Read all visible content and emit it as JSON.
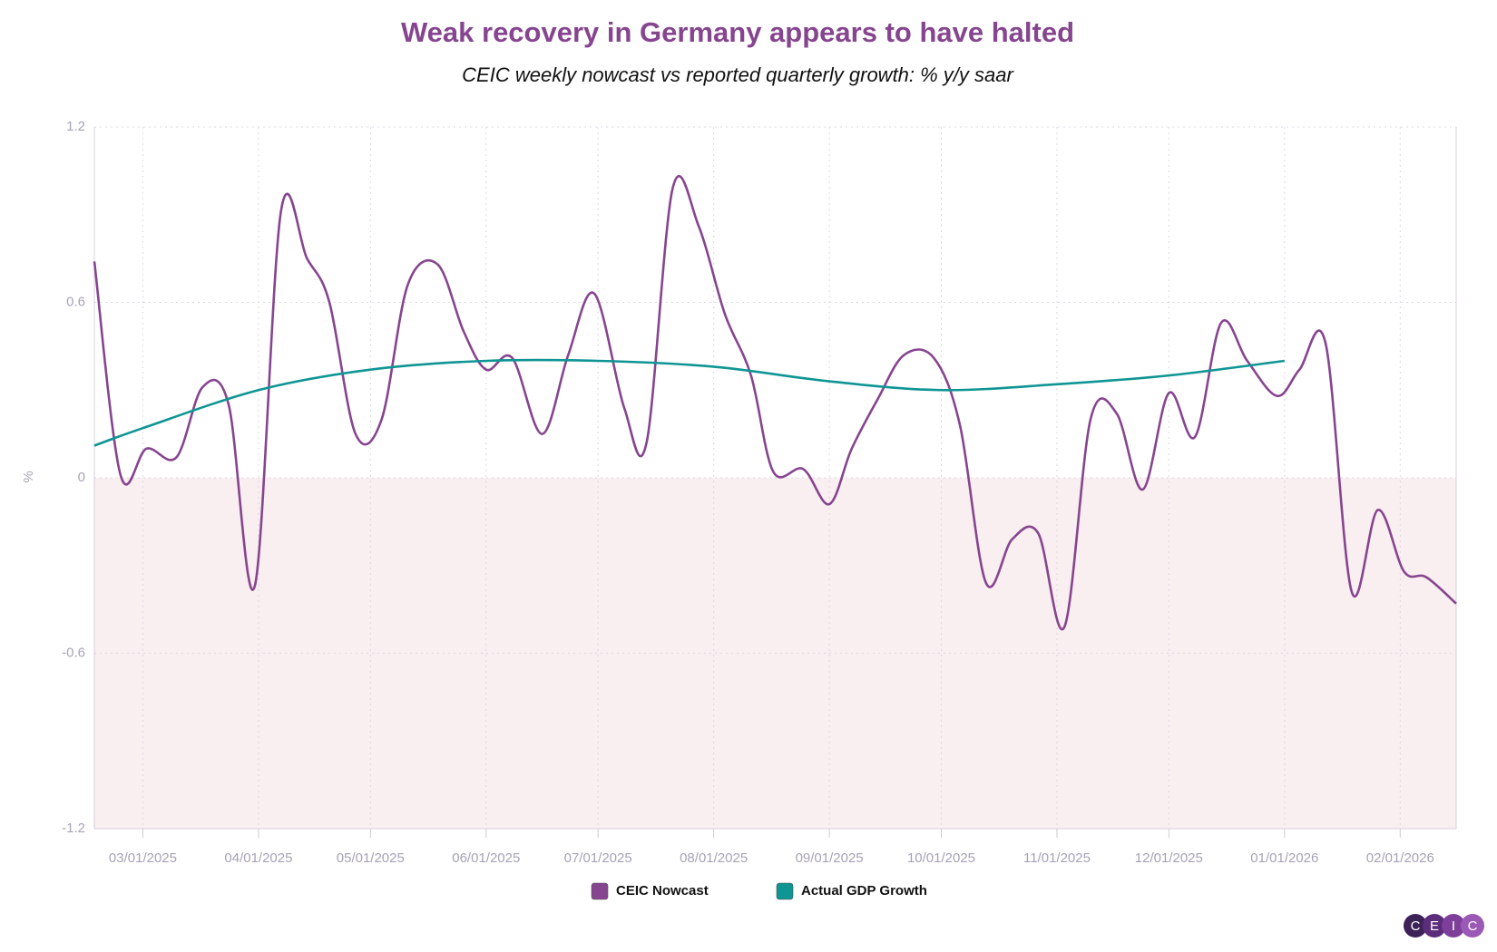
{
  "chart_data": {
    "type": "line",
    "title": "Weak recovery in Germany appears to have halted",
    "subtitle": "CEIC weekly nowcast vs reported quarterly growth: % y/y saar",
    "y_label": "%",
    "xlim": [
      "02/16/2025",
      "02/16/2026"
    ],
    "xticks": [
      "03/01/2025",
      "04/01/2025",
      "05/01/2025",
      "06/01/2025",
      "07/01/2025",
      "08/01/2025",
      "09/01/2025",
      "10/01/2025",
      "11/01/2025",
      "12/01/2025",
      "01/01/2026",
      "02/01/2026"
    ],
    "ylim": [
      -1.2,
      1.2
    ],
    "yticks": [
      -1.2,
      -0.6,
      0,
      0.6,
      1.2
    ],
    "grid": true,
    "negative_fill": "#f9eef0",
    "legend": "bottom",
    "series": [
      {
        "name": "CEIC Nowcast",
        "color": "#86458f",
        "x": [
          "02/16/2025",
          "02/23/2025",
          "03/02/2025",
          "03/10/2025",
          "03/17/2025",
          "03/24/2025",
          "03/31/2025",
          "04/07/2025",
          "04/14/2025",
          "04/20/2025",
          "04/27/2025",
          "05/04/2025",
          "05/11/2025",
          "05/19/2025",
          "05/26/2025",
          "06/01/2025",
          "06/08/2025",
          "06/16/2025",
          "06/23/2025",
          "06/30/2025",
          "07/08/2025",
          "07/14/2025",
          "07/21/2025",
          "07/28/2025",
          "08/04/2025",
          "08/11/2025",
          "08/17/2025",
          "08/25/2025",
          "09/01/2025",
          "09/07/2025",
          "09/14/2025",
          "09/21/2025",
          "09/29/2025",
          "10/06/2025",
          "10/13/2025",
          "10/20/2025",
          "10/27/2025",
          "11/03/2025",
          "11/10/2025",
          "11/17/2025",
          "11/24/2025",
          "12/01/2025",
          "12/08/2025",
          "12/15/2025",
          "12/22/2025",
          "12/30/2025",
          "01/05/2026",
          "01/12/2026",
          "01/19/2026",
          "01/26/2026",
          "02/02/2026",
          "02/08/2026",
          "02/16/2026"
        ],
        "values": [
          0.74,
          0.01,
          0.1,
          0.07,
          0.31,
          0.25,
          -0.37,
          0.91,
          0.75,
          0.6,
          0.15,
          0.2,
          0.66,
          0.73,
          0.5,
          0.37,
          0.41,
          0.15,
          0.42,
          0.63,
          0.24,
          0.12,
          0.99,
          0.86,
          0.56,
          0.35,
          0.02,
          0.03,
          -0.09,
          0.1,
          0.27,
          0.42,
          0.41,
          0.18,
          -0.36,
          -0.21,
          -0.19,
          -0.51,
          0.2,
          0.22,
          -0.04,
          0.29,
          0.14,
          0.53,
          0.4,
          0.28,
          0.37,
          0.46,
          -0.39,
          -0.11,
          -0.32,
          -0.34,
          -0.43
        ]
      },
      {
        "name": "Actual GDP Growth",
        "color": "#0e9594",
        "x": [
          "02/16/2025",
          "03/01/2025",
          "04/01/2025",
          "05/01/2025",
          "06/01/2025",
          "07/01/2025",
          "08/01/2025",
          "09/01/2025",
          "10/01/2025",
          "11/01/2025",
          "12/01/2025",
          "01/01/2026"
        ],
        "values": [
          0.11,
          0.17,
          0.3,
          0.37,
          0.4,
          0.4,
          0.38,
          0.33,
          0.3,
          0.32,
          0.35,
          0.4
        ]
      }
    ]
  },
  "logo": [
    "C",
    "E",
    "I",
    "C"
  ]
}
